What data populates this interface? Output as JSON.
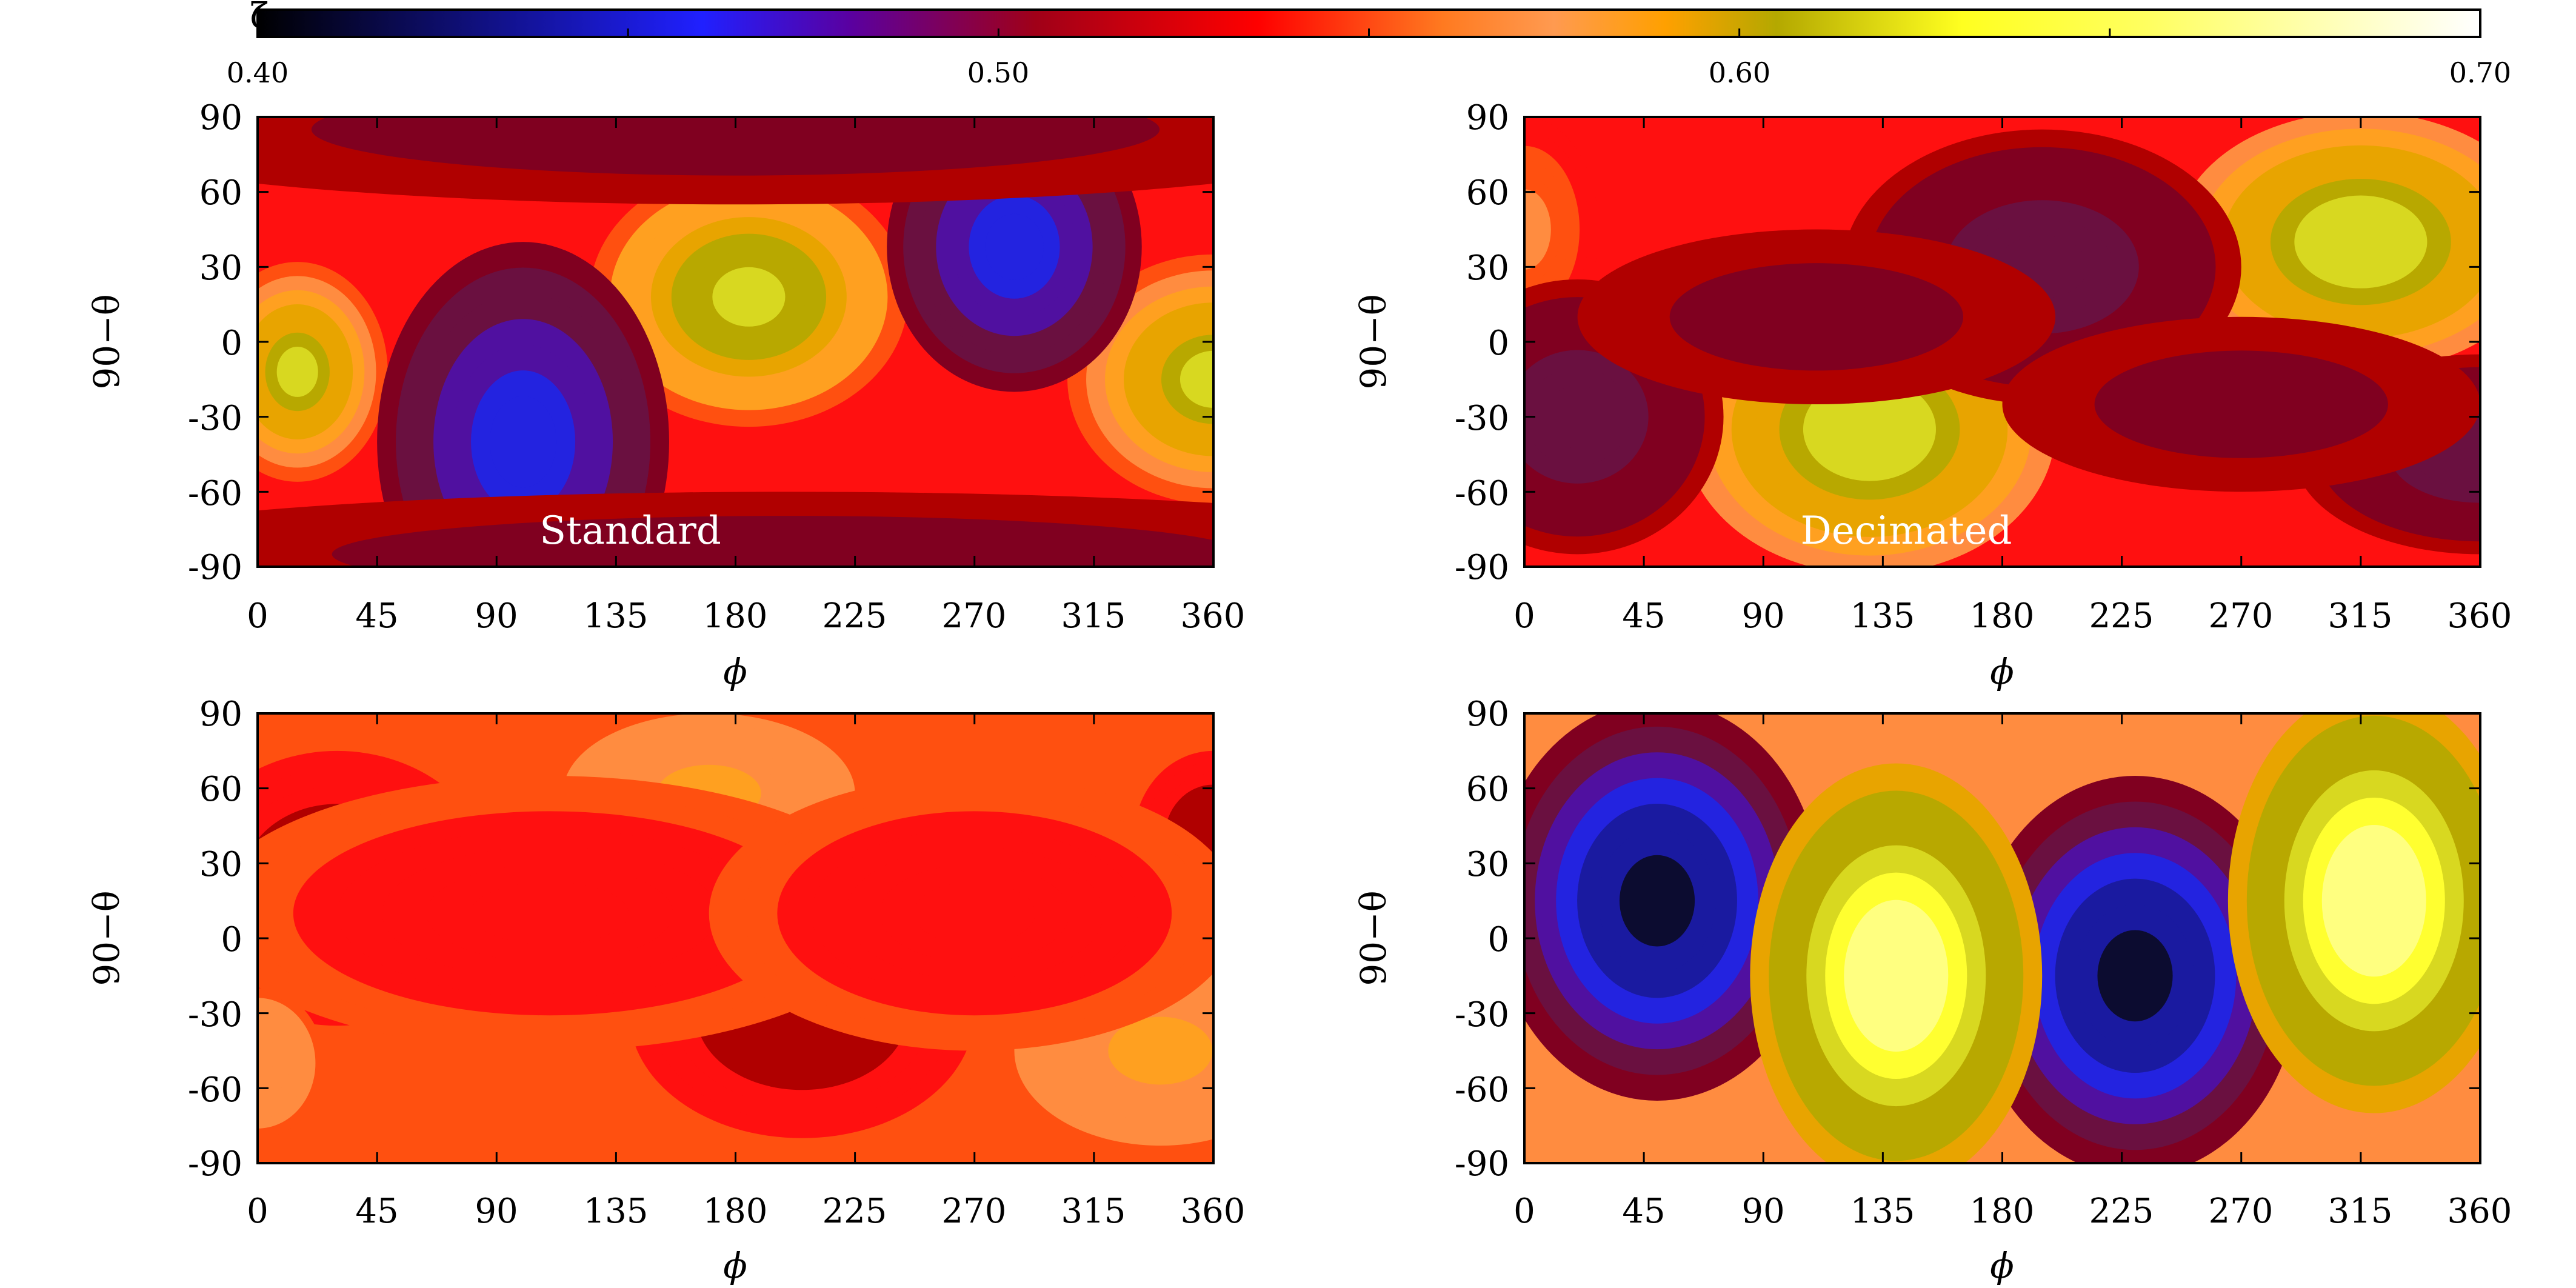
{
  "chart_data": [
    {
      "type": "heatmap",
      "id": "panel-top-left",
      "label": "Standard",
      "xlabel": "ϕ",
      "ylabel": "90−θ",
      "x_ticks": [
        0,
        45,
        90,
        135,
        180,
        225,
        270,
        315,
        360
      ],
      "y_ticks": [
        90,
        60,
        30,
        0,
        -30,
        -60,
        -90
      ],
      "xlim": [
        0,
        360
      ],
      "ylim": [
        -90,
        90
      ],
      "background_value": 0.565,
      "blobs": [
        {
          "phi": 15,
          "lat": -12,
          "peak": 0.655,
          "extent": [
            34,
            44
          ]
        },
        {
          "phi": 185,
          "lat": 18,
          "peak": 0.66,
          "extent": [
            60,
            52
          ]
        },
        {
          "phi": 360,
          "lat": -15,
          "peak": 0.655,
          "extent": [
            55,
            50
          ]
        },
        {
          "phi": 100,
          "lat": -40,
          "peak": 0.47,
          "extent": [
            55,
            80
          ]
        },
        {
          "phi": 285,
          "lat": 38,
          "peak": 0.47,
          "extent": [
            48,
            58
          ]
        },
        {
          "phi": 180,
          "lat": 85,
          "peak": 0.535,
          "extent": [
            260,
            30
          ]
        },
        {
          "phi": 200,
          "lat": -85,
          "peak": 0.535,
          "extent": [
            280,
            25
          ]
        }
      ]
    },
    {
      "type": "heatmap",
      "id": "panel-top-right",
      "label": "Decimated",
      "xlabel": "ϕ",
      "ylabel": "90−θ",
      "x_ticks": [
        0,
        45,
        90,
        135,
        180,
        225,
        270,
        315,
        360
      ],
      "y_ticks": [
        90,
        60,
        30,
        0,
        -30,
        -60,
        -90
      ],
      "xlim": [
        0,
        360
      ],
      "ylim": [
        -90,
        90
      ],
      "background_value": 0.565,
      "blobs": [
        {
          "phi": 130,
          "lat": -35,
          "peak": 0.67,
          "extent": [
            70,
            58
          ]
        },
        {
          "phi": 315,
          "lat": 40,
          "peak": 0.67,
          "extent": [
            70,
            52
          ]
        },
        {
          "phi": 0,
          "lat": 45,
          "peak": 0.6,
          "extent": [
            28,
            45
          ]
        },
        {
          "phi": 20,
          "lat": -30,
          "peak": 0.515,
          "extent": [
            55,
            55
          ]
        },
        {
          "phi": 195,
          "lat": 30,
          "peak": 0.515,
          "extent": [
            75,
            55
          ]
        },
        {
          "phi": 360,
          "lat": -45,
          "peak": 0.515,
          "extent": [
            70,
            40
          ]
        },
        {
          "phi": 110,
          "lat": 10,
          "peak": 0.535,
          "extent": [
            90,
            35
          ]
        },
        {
          "phi": 270,
          "lat": -25,
          "peak": 0.535,
          "extent": [
            90,
            35
          ]
        }
      ]
    },
    {
      "type": "heatmap",
      "id": "panel-bottom-left",
      "label": "",
      "xlabel": "ϕ",
      "ylabel": "90−θ",
      "x_ticks": [
        0,
        45,
        90,
        135,
        180,
        225,
        270,
        315,
        360
      ],
      "y_ticks": [
        90,
        60,
        30,
        0,
        -30,
        -60,
        -90
      ],
      "xlim": [
        0,
        360
      ],
      "ylim": [
        -90,
        90
      ],
      "background_value": 0.585,
      "blobs": [
        {
          "phi": 30,
          "lat": 20,
          "peak": 0.55,
          "extent": [
            60,
            55
          ]
        },
        {
          "phi": 205,
          "lat": -30,
          "peak": 0.55,
          "extent": [
            65,
            50
          ]
        },
        {
          "phi": 360,
          "lat": 40,
          "peak": 0.55,
          "extent": [
            30,
            35
          ]
        },
        {
          "phi": 170,
          "lat": 58,
          "peak": 0.605,
          "extent": [
            55,
            32
          ]
        },
        {
          "phi": 340,
          "lat": -45,
          "peak": 0.605,
          "extent": [
            55,
            38
          ]
        },
        {
          "phi": 0,
          "lat": -50,
          "peak": 0.6,
          "extent": [
            25,
            30
          ]
        },
        {
          "phi": 110,
          "lat": 10,
          "peak": 0.572,
          "extent": [
            130,
            55
          ]
        },
        {
          "phi": 270,
          "lat": 10,
          "peak": 0.572,
          "extent": [
            100,
            55
          ]
        }
      ]
    },
    {
      "type": "heatmap",
      "id": "panel-bottom-right",
      "label": "",
      "xlabel": "ϕ",
      "ylabel": "90−θ",
      "x_ticks": [
        0,
        45,
        90,
        135,
        180,
        225,
        270,
        315,
        360
      ],
      "y_ticks": [
        90,
        60,
        30,
        0,
        -30,
        -60,
        -90
      ],
      "xlim": [
        0,
        360
      ],
      "ylim": [
        -90,
        90
      ],
      "background_value": 0.59,
      "blobs": [
        {
          "phi": 50,
          "lat": 15,
          "peak": 0.4,
          "extent": [
            62,
            80
          ]
        },
        {
          "phi": 230,
          "lat": -15,
          "peak": 0.4,
          "extent": [
            62,
            80
          ]
        },
        {
          "phi": 140,
          "lat": -15,
          "peak": 0.7,
          "extent": [
            55,
            85
          ]
        },
        {
          "phi": 320,
          "lat": 15,
          "peak": 0.7,
          "extent": [
            55,
            85
          ]
        }
      ]
    }
  ],
  "colorbar": {
    "symbol": "ζ",
    "range": [
      0.4,
      0.7
    ],
    "tick_labels": [
      "0.40",
      "0.50",
      "0.60",
      "0.70"
    ],
    "tick_values": [
      0.4,
      0.5,
      0.6,
      0.7
    ],
    "levels": [
      0.4,
      0.43,
      0.46,
      0.49,
      0.51,
      0.53,
      0.55,
      0.565,
      0.58,
      0.59,
      0.6,
      0.615,
      0.63,
      0.645,
      0.66,
      0.675,
      0.69
    ],
    "colors": [
      "#0c0c30",
      "#1a1aa0",
      "#2323e0",
      "#5010a0",
      "#6a1040",
      "#800020",
      "#b00000",
      "#ff1010",
      "#ff5010",
      "#ff8c40",
      "#ffa020",
      "#e8a400",
      "#b8a800",
      "#d8d820",
      "#ffff30",
      "#ffff80",
      "#ffffc8"
    ],
    "gradient": [
      {
        "v": 0.4,
        "c": "#000000"
      },
      {
        "v": 0.46,
        "c": "#2020ff"
      },
      {
        "v": 0.48,
        "c": "#5a00a0"
      },
      {
        "v": 0.505,
        "c": "#a00018"
      },
      {
        "v": 0.535,
        "c": "#ff0000"
      },
      {
        "v": 0.56,
        "c": "#ff7a20"
      },
      {
        "v": 0.575,
        "c": "#ff9a50"
      },
      {
        "v": 0.59,
        "c": "#ffa000"
      },
      {
        "v": 0.605,
        "c": "#b4a800"
      },
      {
        "v": 0.63,
        "c": "#ffff20"
      },
      {
        "v": 0.655,
        "c": "#ffff60"
      },
      {
        "v": 0.7,
        "c": "#ffffff"
      }
    ]
  }
}
